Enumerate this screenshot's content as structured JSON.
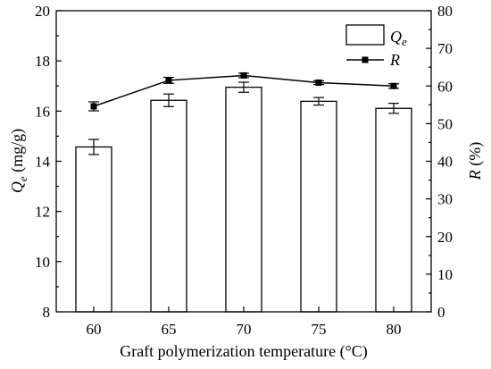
{
  "chart_data": {
    "type": "bar",
    "categories": [
      "60",
      "65",
      "70",
      "75",
      "80"
    ],
    "xlabel": "Graft polymerization temperature (°C)",
    "ylabel_left": {
      "main": "Q",
      "sub": "e",
      "unit": " (mg/g)"
    },
    "ylabel_right": {
      "main": "R",
      "unit": " (%)"
    },
    "ylim_left": [
      8,
      20
    ],
    "ylim_right": [
      0,
      80
    ],
    "yticks_left": [
      "8",
      "10",
      "12",
      "14",
      "16",
      "18",
      "20"
    ],
    "yticks_right": [
      "0",
      "10",
      "20",
      "30",
      "40",
      "50",
      "60",
      "70",
      "80"
    ],
    "grid": false,
    "legend_position": "top-right",
    "series": [
      {
        "name": "Qe",
        "legend_main": "Q",
        "legend_sub": "e",
        "kind": "bar",
        "axis": "left",
        "values": [
          14.57,
          16.43,
          16.95,
          16.39,
          16.11
        ],
        "errors": [
          0.3,
          0.25,
          0.2,
          0.15,
          0.2
        ]
      },
      {
        "name": "R",
        "legend_main": "R",
        "kind": "line",
        "axis": "right",
        "values": [
          54.6,
          61.5,
          62.8,
          60.9,
          60.0
        ],
        "errors": [
          1.2,
          0.8,
          0.6,
          0.5,
          0.6
        ]
      }
    ]
  }
}
